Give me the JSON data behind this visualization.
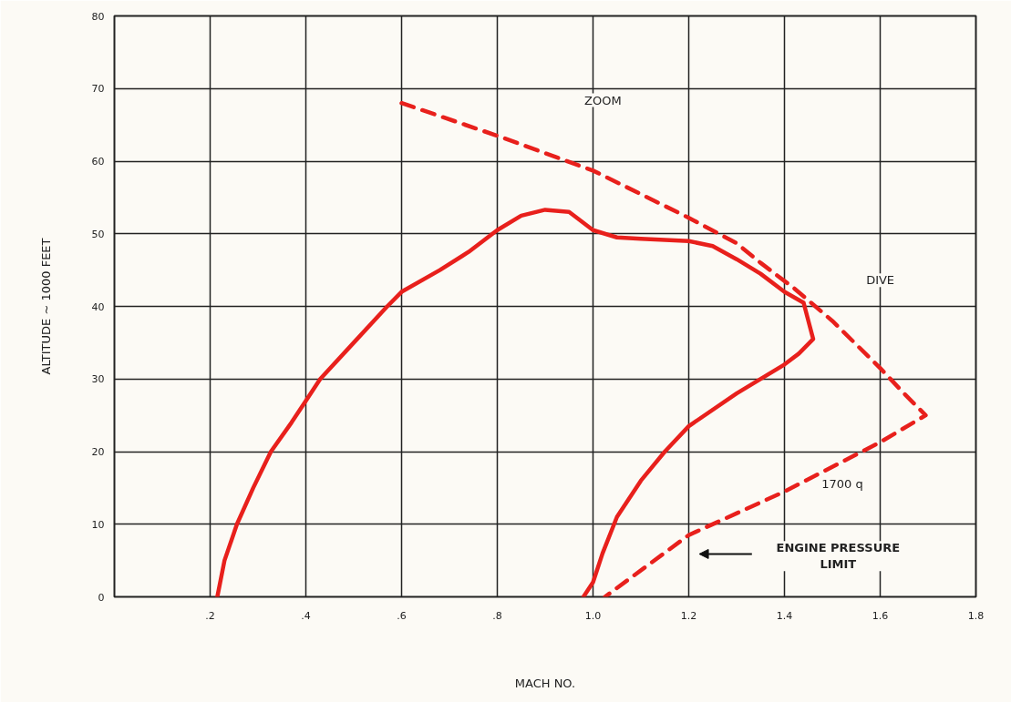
{
  "chart_data": {
    "type": "line",
    "xlabel": "MACH NO.",
    "ylabel": "ALTITUDE ~ 1000 FEET",
    "xlim": [
      0,
      1.8
    ],
    "ylim": [
      0,
      80
    ],
    "xticks": [
      {
        "value": 0,
        "label": null
      },
      {
        "value": 0.2,
        "label": ".2"
      },
      {
        "value": 0.4,
        "label": ".4"
      },
      {
        "value": 0.6,
        "label": ".6"
      },
      {
        "value": 0.8,
        "label": ".8"
      },
      {
        "value": 1.0,
        "label": "1.0"
      },
      {
        "value": 1.2,
        "label": "1.2"
      },
      {
        "value": 1.4,
        "label": "1.4"
      },
      {
        "value": 1.6,
        "label": "1.6"
      },
      {
        "value": 1.8,
        "label": "1.8"
      }
    ],
    "yticks": [
      0,
      10,
      20,
      30,
      40,
      50,
      60,
      70,
      80
    ],
    "grid": true,
    "marker": "none",
    "series": [
      {
        "color": "#e8201c",
        "line_style": "solid",
        "x": [
          0.215,
          0.23,
          0.256,
          0.29,
          0.327,
          0.37,
          0.4,
          0.43,
          0.5,
          0.57,
          0.6,
          0.68,
          0.74,
          0.8,
          0.85,
          0.9,
          0.95,
          1.0,
          1.05,
          1.1,
          1.2,
          1.25,
          1.3,
          1.35,
          1.4,
          1.44,
          1.45,
          1.46,
          1.43,
          1.4,
          1.3,
          1.2,
          1.15,
          1.1,
          1.05,
          1.02,
          1.0,
          0.98
        ],
        "values": [
          0,
          5,
          10,
          15,
          20,
          24,
          27,
          30,
          35,
          40,
          42,
          45,
          47.5,
          50.5,
          52.5,
          53.3,
          53,
          50.5,
          49.5,
          49.3,
          49,
          48.3,
          46.5,
          44.5,
          42,
          40.5,
          38,
          35.5,
          33.5,
          32,
          28,
          23.5,
          20,
          16,
          11,
          6,
          2,
          0
        ]
      },
      {
        "color": "#e8201c",
        "line_style": "dashed",
        "x": [
          0.6,
          0.8,
          1.0,
          1.2,
          1.3,
          1.35,
          1.42,
          1.5,
          1.6,
          1.65,
          1.695,
          1.6,
          1.4,
          1.2,
          1.025
        ],
        "values": [
          68,
          63.5,
          58.7,
          52.2,
          48.7,
          46,
          42.5,
          38,
          31.5,
          28,
          25,
          21.3,
          14.5,
          8.5,
          0
        ]
      }
    ],
    "annotations": [
      "ZOOM",
      "DIVE",
      "1700 q",
      "ENGINE PRESSURE\nLIMIT"
    ]
  }
}
